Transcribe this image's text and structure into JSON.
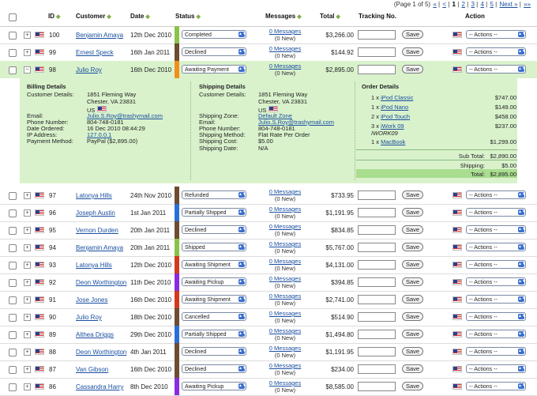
{
  "pager": {
    "text": "(Page 1 of 5)",
    "first": "«",
    "prev": "<",
    "pages": [
      "1",
      "2",
      "3",
      "4",
      "5"
    ],
    "next": "Next »",
    "last": "»»"
  },
  "headers": {
    "id": "ID",
    "customer": "Customer",
    "date": "Date",
    "status": "Status",
    "messages": "Messages",
    "total": "Total",
    "tracking": "Tracking No.",
    "action": "Action"
  },
  "save_label": "Save",
  "actions_label": "-- Actions --",
  "rows": [
    {
      "id": "100",
      "customer": "Benjamin Amaya",
      "date": "12th Dec 2010",
      "status": "Completed",
      "messages": "0 Messages",
      "new": "(0 New)",
      "total": "$3,266.00",
      "color": "#8bc34a"
    },
    {
      "id": "99",
      "customer": "Ernest Speck",
      "date": "16th Jan 2011",
      "status": "Declined",
      "messages": "0 Messages",
      "new": "(0 New)",
      "total": "$144.92",
      "color": "#6d4c2f"
    },
    {
      "id": "98",
      "customer": "Julio Roy",
      "date": "16th Dec 2010",
      "status": "Awaiting Payment",
      "messages": "0 Messages",
      "new": "(0 New)",
      "total": "$2,895.00",
      "color": "#f0901a"
    },
    {
      "id": "97",
      "customer": "Latonya Hills",
      "date": "24th Nov 2010",
      "status": "Refunded",
      "messages": "0 Messages",
      "new": "(0 New)",
      "total": "$733.95",
      "color": "#6d4c2f"
    },
    {
      "id": "96",
      "customer": "Joseph Austin",
      "date": "1st Jan 2011",
      "status": "Partially Shipped",
      "messages": "0 Messages",
      "new": "(0 New)",
      "total": "$1,191.95",
      "color": "#2a6fd8"
    },
    {
      "id": "95",
      "customer": "Vernon Durden",
      "date": "20th Jan 2011",
      "status": "Declined",
      "messages": "0 Messages",
      "new": "(0 New)",
      "total": "$834.85",
      "color": "#6d4c2f"
    },
    {
      "id": "94",
      "customer": "Benjamin Amaya",
      "date": "20th Jan 2011",
      "status": "Shipped",
      "messages": "0 Messages",
      "new": "(0 New)",
      "total": "$5,767.00",
      "color": "#8bc34a"
    },
    {
      "id": "93",
      "customer": "Latonya Hills",
      "date": "12th Dec 2010",
      "status": "Awaiting Shipment",
      "messages": "0 Messages",
      "new": "(0 New)",
      "total": "$4,131.00",
      "color": "#d33a1c"
    },
    {
      "id": "92",
      "customer": "Deon Worthington",
      "date": "11th Dec 2010",
      "status": "Awaiting Pickup",
      "messages": "0 Messages",
      "new": "(0 New)",
      "total": "$394.85",
      "color": "#8a2be2"
    },
    {
      "id": "91",
      "customer": "Jose Jones",
      "date": "16th Dec 2010",
      "status": "Awaiting Shipment",
      "messages": "0 Messages",
      "new": "(0 New)",
      "total": "$2,741.00",
      "color": "#d33a1c"
    },
    {
      "id": "90",
      "customer": "Julio Roy",
      "date": "18th Dec 2010",
      "status": "Cancelled",
      "messages": "0 Messages",
      "new": "(0 New)",
      "total": "$514.90",
      "color": "#6d4c2f"
    },
    {
      "id": "89",
      "customer": "Althea Driggs",
      "date": "29th Dec 2010",
      "status": "Partially Shipped",
      "messages": "0 Messages",
      "new": "(0 New)",
      "total": "$1,494.80",
      "color": "#2a6fd8"
    },
    {
      "id": "88",
      "customer": "Deon Worthington",
      "date": "4th Jan 2011",
      "status": "Declined",
      "messages": "0 Messages",
      "new": "(0 New)",
      "total": "$1,191.95",
      "color": "#6d4c2f"
    },
    {
      "id": "87",
      "customer": "Van Gibson",
      "date": "16th Dec 2010",
      "status": "Declined",
      "messages": "0 Messages",
      "new": "(0 New)",
      "total": "$234.00",
      "color": "#6d4c2f"
    },
    {
      "id": "86",
      "customer": "Cassandra Harry",
      "date": "8th Dec 2010",
      "status": "Awaiting Pickup",
      "messages": "0 Messages",
      "new": "(0 New)",
      "total": "$8,585.00",
      "color": "#8a2be2"
    }
  ],
  "detail": {
    "billing": {
      "title": "Billing Details",
      "customer_label": "Customer Details:",
      "addr1": "1851 Fleming Way",
      "addr2": "Chester, VA 23831",
      "country": "US",
      "email_label": "Email:",
      "email": "Julio.S.Roy@trashymail.com",
      "phone_label": "Phone Number:",
      "phone": "804-748-0181",
      "date_label": "Date Ordered:",
      "date": "16 Dec 2010 08:44:29",
      "ip_label": "IP Address:",
      "ip": "127.0.0.1",
      "pay_label": "Payment Method:",
      "pay": "PayPal ($2,895.00)"
    },
    "shipping": {
      "title": "Shipping Details",
      "customer_label": "Customer Details:",
      "addr1": "1851 Fleming Way",
      "addr2": "Chester, VA 23831",
      "country": "US",
      "zone_label": "Shipping Zone:",
      "zone": "Default Zone",
      "email_label": "Email:",
      "email": "Julio.S.Roy@trashymail.com",
      "phone_label": "Phone Number:",
      "phone": "804-748-0181",
      "method_label": "Shipping Method:",
      "method": "Flat Rate Per Order",
      "cost_label": "Shipping Cost:",
      "cost": "$5.00",
      "date_label": "Shipping Date:",
      "date": "N/A"
    },
    "order": {
      "title": "Order Details",
      "items": [
        {
          "qty": "1 x",
          "name": "iPod Classic",
          "sku": "",
          "price": "$747.00"
        },
        {
          "qty": "1 x",
          "name": "iPod Nano",
          "sku": "",
          "price": "$149.00"
        },
        {
          "qty": "2 x",
          "name": "iPod Touch",
          "sku": "",
          "price": "$458.00"
        },
        {
          "qty": "3 x",
          "name": "iWork 09",
          "sku": "IWORK09",
          "price": "$237.00"
        },
        {
          "qty": "1 x",
          "name": "MacBook",
          "sku": "",
          "price": "$1,299.00"
        }
      ],
      "subtotal_label": "Sub Total:",
      "subtotal": "$2,890.00",
      "shipping_label": "Shipping:",
      "shipping": "$5.00",
      "total_label": "Total:",
      "total": "$2,895.00"
    }
  }
}
